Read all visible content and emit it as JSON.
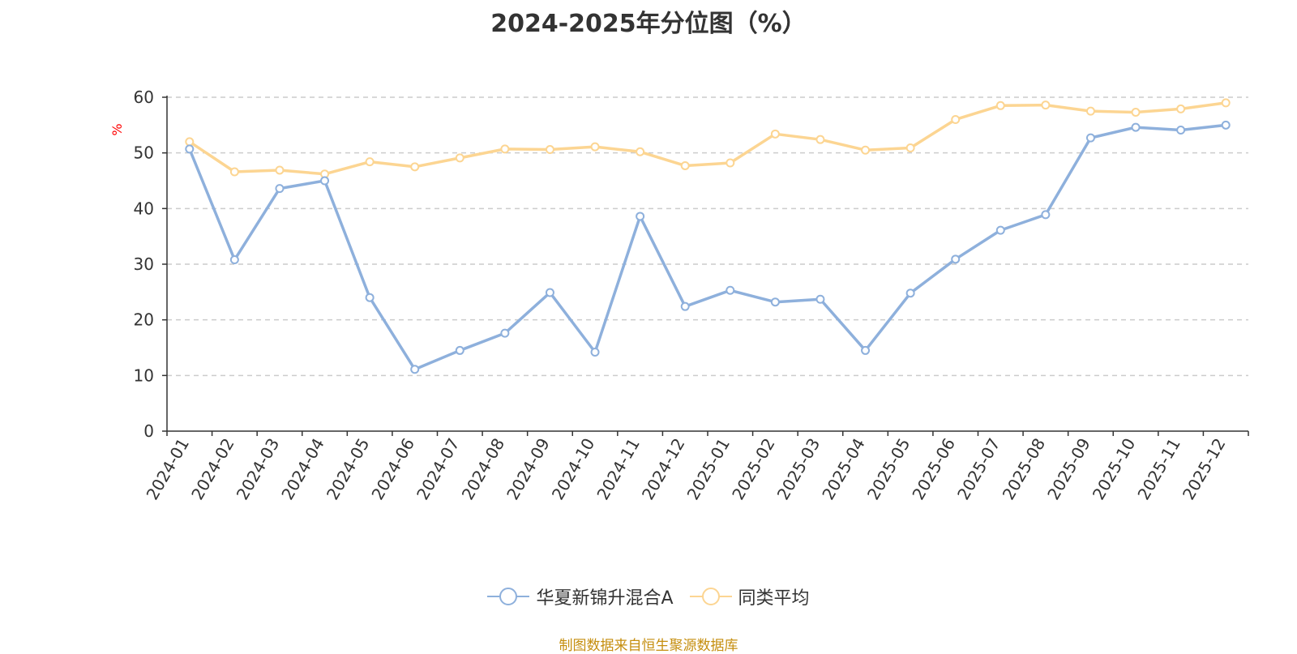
{
  "title": "2024-2025年分位图（%）",
  "source_text": "制图数据来自恒生聚源数据库",
  "colors": {
    "series_a": "#8eb0dc",
    "series_b": "#fcd592",
    "ylabel": "#ff0000",
    "source": "#c58e0e",
    "axis": "#333333",
    "grid": "#cccccc"
  },
  "chart_data": {
    "type": "line",
    "title": "2024-2025年分位图（%）",
    "ylabel": "%",
    "xlabel": "",
    "ylim": [
      0,
      60
    ],
    "yticks": [
      0,
      10,
      20,
      30,
      40,
      50,
      60
    ],
    "grid": true,
    "legend_position": "bottom",
    "x": [
      "2024-01",
      "2024-02",
      "2024-03",
      "2024-04",
      "2024-05",
      "2024-06",
      "2024-07",
      "2024-08",
      "2024-09",
      "2024-10",
      "2024-11",
      "2024-12",
      "2025-01",
      "2025-02",
      "2025-03",
      "2025-04",
      "2025-05",
      "2025-06",
      "2025-07",
      "2025-08",
      "2025-09",
      "2025-10",
      "2025-11",
      "2025-12"
    ],
    "series": [
      {
        "name": "华夏新锦升混合A",
        "values": [
          50.7,
          30.8,
          43.6,
          45.0,
          24.0,
          11.1,
          14.5,
          17.6,
          24.9,
          14.2,
          38.6,
          22.4,
          25.3,
          23.2,
          23.7,
          14.5,
          24.8,
          30.9,
          36.1,
          38.9,
          52.7,
          54.6,
          54.1,
          55.0
        ]
      },
      {
        "name": "同类平均",
        "values": [
          52.0,
          46.6,
          46.9,
          46.2,
          48.4,
          47.5,
          49.1,
          50.7,
          50.6,
          51.1,
          50.2,
          47.7,
          48.2,
          53.4,
          52.4,
          50.5,
          50.9,
          56.0,
          58.5,
          58.6,
          57.5,
          57.3,
          57.9,
          59.0
        ]
      }
    ]
  }
}
